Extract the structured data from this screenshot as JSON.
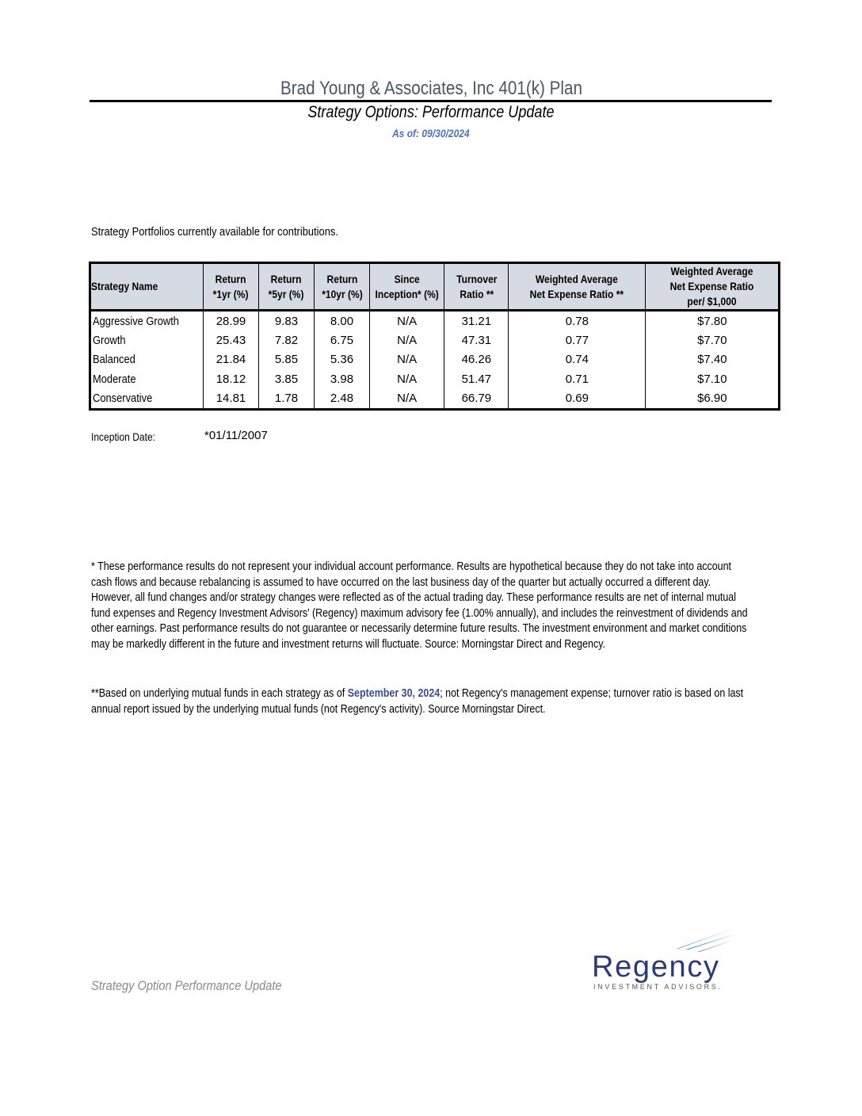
{
  "header": {
    "title": "Brad Young & Associates, Inc 401(k) Plan",
    "subtitle": "Strategy Options: Performance Update",
    "as_of": "As of: 09/30/2024"
  },
  "intro": "Strategy Portfolios currently available for contributions.",
  "table": {
    "columns": [
      [
        "Strategy Name"
      ],
      [
        "Return",
        "*1yr (%)"
      ],
      [
        "Return",
        "*5yr (%)"
      ],
      [
        "Return",
        "*10yr (%)"
      ],
      [
        "Since",
        "Inception* (%)"
      ],
      [
        "Turnover",
        "Ratio **"
      ],
      [
        "Weighted Average",
        "Net Expense Ratio **"
      ],
      [
        "Weighted Average",
        "Net Expense Ratio",
        "per/ $1,000"
      ]
    ],
    "rows": [
      [
        "Aggressive Growth",
        "28.99",
        "9.83",
        "8.00",
        "N/A",
        "31.21",
        "0.78",
        "$7.80"
      ],
      [
        "Growth",
        "25.43",
        "7.82",
        "6.75",
        "N/A",
        "47.31",
        "0.77",
        "$7.70"
      ],
      [
        "Balanced",
        "21.84",
        "5.85",
        "5.36",
        "N/A",
        "46.26",
        "0.74",
        "$7.40"
      ],
      [
        "Moderate",
        "18.12",
        "3.85",
        "3.98",
        "N/A",
        "51.47",
        "0.71",
        "$7.10"
      ],
      [
        "Conservative",
        "14.81",
        "1.78",
        "2.48",
        "N/A",
        "66.79",
        "0.69",
        "$6.90"
      ]
    ]
  },
  "inception": {
    "label": "Inception Date:",
    "value": "*01/11/2007"
  },
  "disclaimer_lines": [
    "* These performance results do not represent your individual account performance.  Results are hypothetical because they do not take into account",
    "cash flows and because rebalancing is assumed to have occurred on the last business day of the quarter but actually occurred a different day.",
    "However, all fund changes and/or strategy changes were reflected as of the actual trading day. These performance results are net of internal mutual",
    "fund expenses and Regency Investment Advisors' (Regency) maximum advisory fee (1.00% annually), and includes the reinvestment of dividends and",
    "other earnings.  Past performance results do not guarantee or necessarily determine future results.  The investment environment and market conditions",
    "may be markedly different in the future and investment returns will fluctuate. Source: Morningstar Direct and Regency."
  ],
  "note": {
    "prefix": "**Based on underlying mutual funds in each strategy as of ",
    "date": "September 30, 2024",
    "suffix": "; not Regency's management expense; turnover ratio is based on last",
    "line2": "annual report  issued by the underlying mutual funds (not Regency's activity). Source Morningstar Direct."
  },
  "footer": "Strategy Option Performance Update",
  "logo": {
    "name": "Regency",
    "tagline": "INVESTMENT ADVISORS.",
    "color": "#2b3a7a"
  }
}
